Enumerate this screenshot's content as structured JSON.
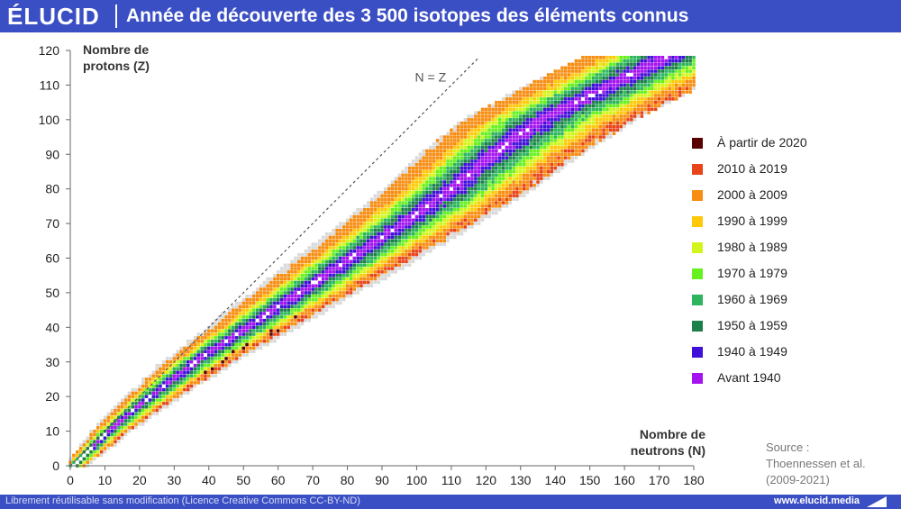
{
  "header": {
    "logo": "ÉLUCID",
    "title": "Année de découverte des 3 500 isotopes des éléments connus"
  },
  "footer": {
    "license": "Librement réutilisable sans modification (Licence Creative Commons CC-BY-ND)",
    "url": "www.elucid.media"
  },
  "source": {
    "line1": "Source :",
    "line2": "Thoennessen et al.",
    "line3": "(2009-2021)"
  },
  "colors": {
    "header_bg": "#3b4fc4",
    "unknown_gray": "#d9d9d9"
  },
  "legend": [
    {
      "label": "À partir de 2020",
      "color": "#5a0000"
    },
    {
      "label": "2010 à 2019",
      "color": "#e8431a"
    },
    {
      "label": "2000 à 2009",
      "color": "#f78d12"
    },
    {
      "label": "1990 à 1999",
      "color": "#ffc909"
    },
    {
      "label": "1980 à 1989",
      "color": "#d4f51c"
    },
    {
      "label": "1970 à 1979",
      "color": "#66f01e"
    },
    {
      "label": "1960 à 1969",
      "color": "#2db55d"
    },
    {
      "label": "1950 à 1959",
      "color": "#1d7f4a"
    },
    {
      "label": "1940 à 1949",
      "color": "#3f10d8"
    },
    {
      "label": "Avant 1940",
      "color": "#a413ef"
    }
  ],
  "chart_data": {
    "type": "heatmap",
    "xlabel": [
      "Nombre de",
      "neutrons (N)"
    ],
    "ylabel": [
      "Nombre de",
      "protons (Z)"
    ],
    "xlim": [
      0,
      180
    ],
    "ylim": [
      0,
      120
    ],
    "xticks": [
      0,
      10,
      20,
      30,
      40,
      50,
      60,
      70,
      80,
      90,
      100,
      110,
      120,
      130,
      140,
      150,
      160,
      170,
      180
    ],
    "yticks": [
      0,
      10,
      20,
      30,
      40,
      50,
      60,
      70,
      80,
      90,
      100,
      110,
      120
    ],
    "reference_line": {
      "label": "N = Z",
      "from": [
        0,
        0
      ],
      "to": [
        118,
        118
      ]
    },
    "valley_of_stability_N_center": [
      [
        0,
        1
      ],
      [
        10,
        11
      ],
      [
        20,
        23
      ],
      [
        30,
        36
      ],
      [
        40,
        51
      ],
      [
        50,
        66
      ],
      [
        60,
        81
      ],
      [
        70,
        96
      ],
      [
        80,
        110
      ],
      [
        90,
        122
      ],
      [
        100,
        136
      ],
      [
        110,
        156
      ],
      [
        118,
        172
      ]
    ],
    "band_layers_from_center": [
      "Avant 1940",
      "1940 à 1949",
      "1950 à 1959",
      "1960 à 1969",
      "1970 à 1979",
      "1980 à 1989",
      "1990 à 1999",
      "2000 à 2009",
      "2010 à 2019",
      "À partir de 2020"
    ]
  }
}
